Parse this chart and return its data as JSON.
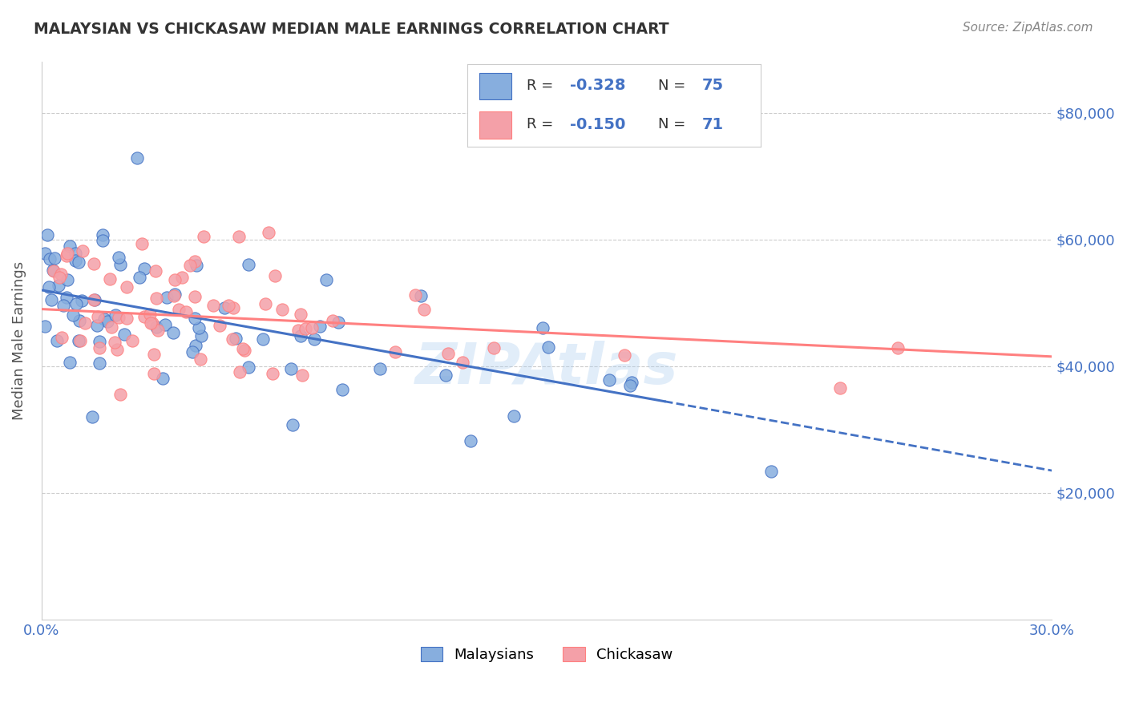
{
  "title": "MALAYSIAN VS CHICKASAW MEDIAN MALE EARNINGS CORRELATION CHART",
  "source": "Source: ZipAtlas.com",
  "ylabel": "Median Male Earnings",
  "y_ticks": [
    20000,
    40000,
    60000,
    80000
  ],
  "y_tick_labels": [
    "$20,000",
    "$40,000",
    "$60,000",
    "$80,000"
  ],
  "x_range": [
    0.0,
    0.3
  ],
  "y_range": [
    0,
    88000
  ],
  "malaysian_color": "#87AEDE",
  "chickasaw_color": "#F4A0A8",
  "malaysian_line_color": "#4472C4",
  "chickasaw_line_color": "#FF8080",
  "legend_R_malaysian": "-0.328",
  "legend_N_malaysian": "75",
  "legend_R_chickasaw": "-0.150",
  "legend_N_chickasaw": "71",
  "background_color": "#FFFFFF",
  "grid_color": "#CCCCCC",
  "title_color": "#333333",
  "axis_label_color": "#555555",
  "tick_color": "#4472C4",
  "mal_intercept": 52000,
  "mal_slope": -95000,
  "chick_intercept": 49000,
  "chick_slope": -25000
}
